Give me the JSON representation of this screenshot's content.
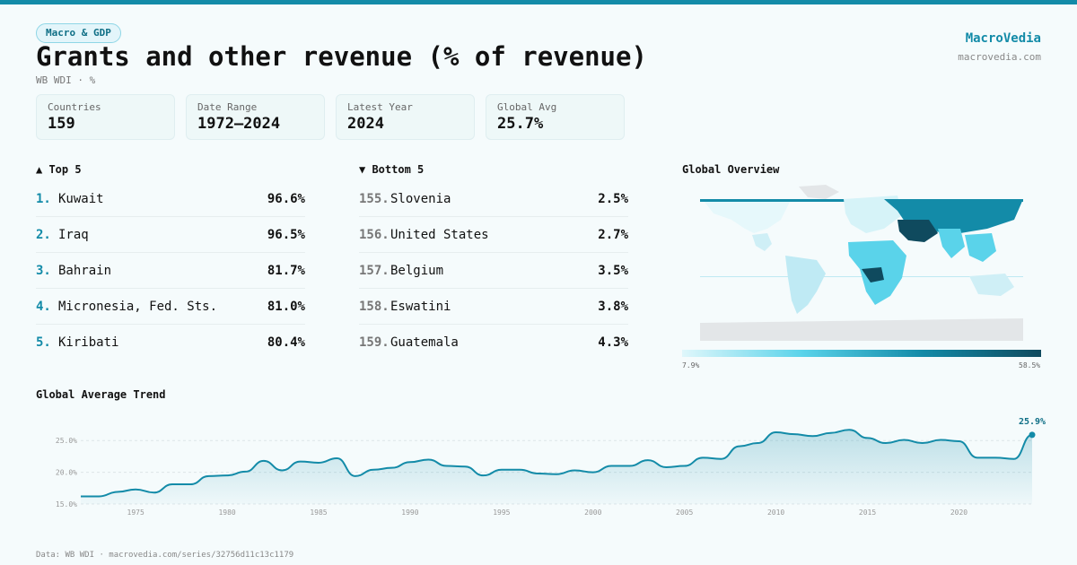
{
  "header": {
    "tag": "Macro & GDP",
    "title": "Grants and other revenue (% of revenue)",
    "subtitle": "WB WDI · %",
    "brand_name": "MacroVedia",
    "brand_url": "macrovedia.com"
  },
  "stats": [
    {
      "label": "Countries",
      "value": "159"
    },
    {
      "label": "Date Range",
      "value": "1972–2024"
    },
    {
      "label": "Latest Year",
      "value": "2024"
    },
    {
      "label": "Global Avg",
      "value": "25.7%"
    }
  ],
  "top5": {
    "heading": "▲ Top 5",
    "items": [
      {
        "rank": "1.",
        "name": "Kuwait",
        "value": "96.6%"
      },
      {
        "rank": "2.",
        "name": "Iraq",
        "value": "96.5%"
      },
      {
        "rank": "3.",
        "name": "Bahrain",
        "value": "81.7%"
      },
      {
        "rank": "4.",
        "name": "Micronesia, Fed. Sts.",
        "value": "81.0%"
      },
      {
        "rank": "5.",
        "name": "Kiribati",
        "value": "80.4%"
      }
    ]
  },
  "bottom5": {
    "heading": "▼ Bottom 5",
    "items": [
      {
        "rank": "155.",
        "name": "Slovenia",
        "value": "2.5%"
      },
      {
        "rank": "156.",
        "name": "United States",
        "value": "2.7%"
      },
      {
        "rank": "157.",
        "name": "Belgium",
        "value": "3.5%"
      },
      {
        "rank": "158.",
        "name": "Eswatini",
        "value": "3.8%"
      },
      {
        "rank": "159.",
        "name": "Guatemala",
        "value": "4.3%"
      }
    ]
  },
  "map": {
    "title": "Global Overview",
    "legend_min": "7.9%",
    "legend_max": "58.5%",
    "colors": [
      "#dff7fb",
      "#5ad3ea",
      "#138ba8",
      "#0f4a5e",
      "#e3e6e8"
    ]
  },
  "trend": {
    "title": "Global Average Trend",
    "last_label": "25.9%"
  },
  "footer": "Data: WB WDI · macrovedia.com/series/32756d11c13c1179",
  "chart_data": {
    "type": "area",
    "title": "Global Average Trend",
    "xlabel": "",
    "ylabel": "",
    "x": [
      1972,
      1973,
      1974,
      1975,
      1976,
      1977,
      1978,
      1979,
      1980,
      1981,
      1982,
      1983,
      1984,
      1985,
      1986,
      1987,
      1988,
      1989,
      1990,
      1991,
      1992,
      1993,
      1994,
      1995,
      1996,
      1997,
      1998,
      1999,
      2000,
      2001,
      2002,
      2003,
      2004,
      2005,
      2006,
      2007,
      2008,
      2009,
      2010,
      2011,
      2012,
      2013,
      2014,
      2015,
      2016,
      2017,
      2018,
      2019,
      2020,
      2021,
      2022,
      2023,
      2024
    ],
    "values": [
      16.2,
      16.2,
      16.9,
      17.3,
      16.8,
      18.1,
      18.1,
      19.4,
      19.5,
      20.1,
      21.8,
      20.3,
      21.7,
      21.5,
      22.2,
      19.4,
      20.4,
      20.7,
      21.6,
      22.0,
      21.0,
      20.9,
      19.5,
      20.4,
      20.4,
      19.8,
      19.7,
      20.3,
      20.0,
      21.0,
      21.0,
      21.9,
      20.8,
      21.0,
      22.3,
      22.1,
      24.1,
      24.6,
      26.3,
      26.0,
      25.7,
      26.2,
      26.7,
      25.4,
      24.6,
      25.1,
      24.6,
      25.1,
      24.9,
      22.3,
      22.3,
      22.1,
      25.9
    ],
    "ylim": [
      15,
      28
    ],
    "yticks": [
      15.0,
      20.0,
      25.0
    ],
    "ytick_labels": [
      "15.0%",
      "20.0%",
      "25.0%"
    ],
    "xticks": [
      1975,
      1980,
      1985,
      1990,
      1995,
      2000,
      2005,
      2010,
      2015,
      2020
    ],
    "line_color": "#138ba8",
    "grid": true
  }
}
